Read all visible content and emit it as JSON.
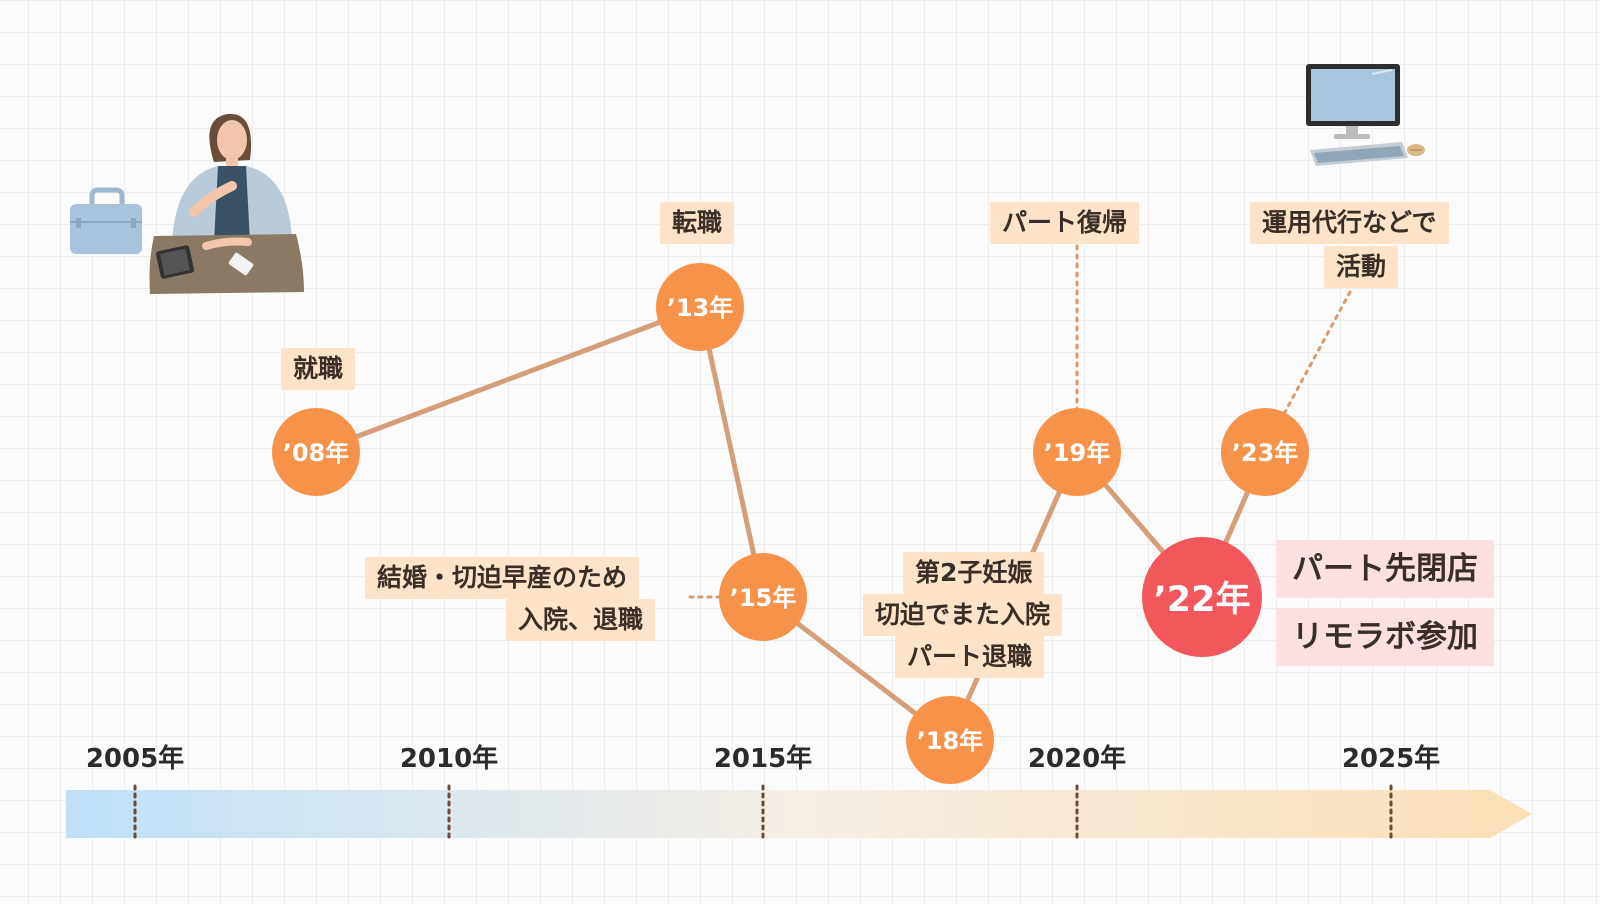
{
  "axis": {
    "years": [
      "2005年",
      "2010年",
      "2015年",
      "2020年",
      "2025年"
    ]
  },
  "nodes": [
    {
      "label": "’08年",
      "id": "2008",
      "color": "#f7924a"
    },
    {
      "label": "’13年",
      "id": "2013",
      "color": "#f7924a"
    },
    {
      "label": "’15年",
      "id": "2015",
      "color": "#f7924a"
    },
    {
      "label": "’18年",
      "id": "2018",
      "color": "#f7924a"
    },
    {
      "label": "’19年",
      "id": "2019",
      "color": "#f7924a"
    },
    {
      "label": "’22年",
      "id": "2022",
      "color": "#f2575c"
    },
    {
      "label": "’23年",
      "id": "2023",
      "color": "#f7924a"
    }
  ],
  "events": {
    "e2008": "就職",
    "e2013": "転職",
    "e2015_line1": "結婚・切迫早産のため",
    "e2015_line2": "入院、退職",
    "e2018_line1": "第2子妊娠",
    "e2018_line2": "切迫でまた入院",
    "e2018_line3": "パート退職",
    "e2019": "パート復帰",
    "e2023_line1": "運用代行などで",
    "e2023_line2": "活動",
    "e2022_line1": "パート先閉店",
    "e2022_line2": "リモラボ参加"
  },
  "icons": {
    "left": "woman-at-desk-with-briefcase-illustration",
    "right": "desktop-computer-keyboard-mouse-illustration"
  },
  "colors": {
    "line": "#d49e7b",
    "dotted": "#d89a72",
    "arrow_start": "#bfe0f8",
    "arrow_end": "#fbe0b7",
    "label_bg": "#fde3c9",
    "pink_bg": "#fde0e2"
  }
}
